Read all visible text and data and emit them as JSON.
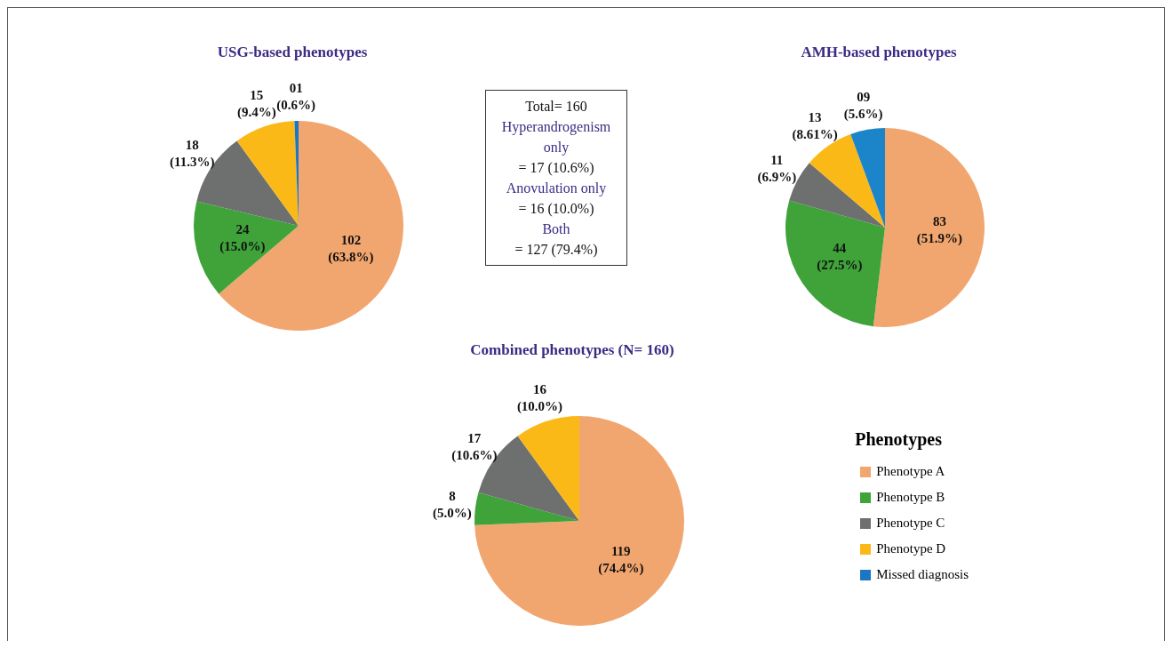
{
  "chart_data": [
    {
      "type": "pie",
      "title": "USG-based phenotypes",
      "categories": [
        "Phenotype A",
        "Phenotype B",
        "Phenotype C",
        "Phenotype D",
        "Missed diagnosis"
      ],
      "values": [
        102,
        24,
        18,
        15,
        1
      ],
      "colors": [
        "#f2a66f",
        "#3fa33a",
        "#6e7070",
        "#fbb918",
        "#1c76c0"
      ],
      "value_labels": [
        "102\n(63.8%)",
        "24\n(15.0%)",
        "18\n(11.3%)",
        "15\n(9.4%)",
        "01\n(0.6%)"
      ],
      "legend": "bottom right",
      "legend_title": "Phenotypes"
    },
    {
      "type": "other",
      "annotations": [
        "Total= 160",
        "Hyperandrogenism only",
        "= 17 (10.6%)",
        "Anovulation only",
        "= 16 (10.0%)",
        "Both",
        "= 127 (79.4%)"
      ]
    },
    {
      "type": "pie",
      "title": "AMH-based phenotypes",
      "categories": [
        null,
        null,
        null,
        null,
        null
      ],
      "values": [
        83,
        44,
        11,
        13,
        9
      ],
      "colors": [
        "#f2a66f",
        "#3fa33a",
        "#6e7070",
        "#fbb918",
        "#1c84c8"
      ],
      "value_labels": [
        "83\n(51.9%)",
        "44\n(27.5%)",
        "11\n(6.9%)",
        "13\n(8.61%)",
        "09\n(5.6%)"
      ]
    },
    {
      "type": "pie",
      "title": "Combined phenotypes (N= 160)",
      "categories": [
        null,
        null,
        null,
        null
      ],
      "values": [
        119,
        8,
        17,
        16
      ],
      "colors": [
        "#f2a66f",
        "#3fa33a",
        "#6e7070",
        "#fbb918"
      ],
      "value_labels": [
        "119\n(74.4%)",
        "8\n(5.0%)",
        "17\n(10.6%)",
        "16\n(10.0%)"
      ]
    }
  ]
}
